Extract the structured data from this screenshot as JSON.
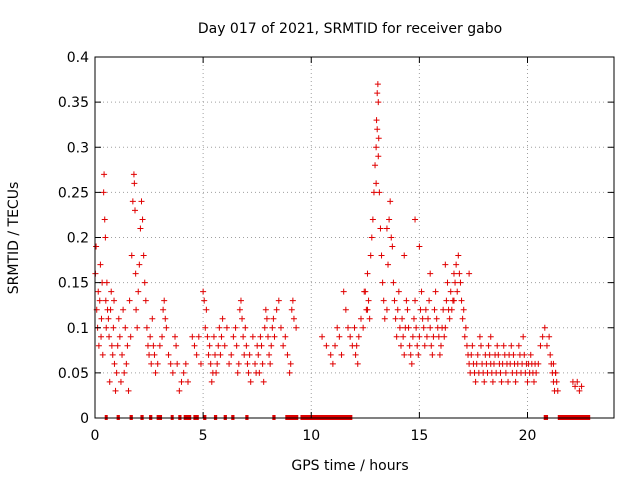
{
  "chart_data": {
    "type": "scatter",
    "title": "Day 017 of 2021, SRMTID for receiver gabo",
    "xlabel": "GPS time / hours",
    "ylabel": "SRMTID / TECUs",
    "xlim": [
      0,
      24
    ],
    "ylim": [
      0,
      0.4
    ],
    "xticks": [
      0,
      5,
      10,
      15,
      20
    ],
    "xtick_labels": [
      "0",
      "5",
      "10",
      "15",
      "20"
    ],
    "yticks": [
      0,
      0.05,
      0.1,
      0.15,
      0.2,
      0.25,
      0.3,
      0.35,
      0.4
    ],
    "ytick_labels": [
      "0",
      "0.05",
      "0.1",
      "0.15",
      "0.2",
      "0.25",
      "0.3",
      "0.35",
      "0.4"
    ],
    "grid": true,
    "marker": "+",
    "color": "#e00000",
    "zero_segments": [
      [
        0.45,
        0.55
      ],
      [
        1.0,
        1.15
      ],
      [
        1.6,
        1.75
      ],
      [
        2.1,
        2.25
      ],
      [
        2.5,
        2.65
      ],
      [
        2.85,
        3.1
      ],
      [
        3.5,
        3.6
      ],
      [
        3.85,
        4.0
      ],
      [
        4.1,
        4.45
      ],
      [
        4.55,
        4.8
      ],
      [
        5.0,
        5.15
      ],
      [
        5.5,
        5.65
      ],
      [
        5.95,
        6.1
      ],
      [
        6.3,
        6.45
      ],
      [
        6.95,
        7.1
      ],
      [
        8.2,
        8.35
      ],
      [
        8.8,
        9.4
      ],
      [
        9.5,
        11.9
      ],
      [
        20.75,
        20.95
      ],
      [
        21.4,
        22.9
      ]
    ],
    "series": [
      {
        "name": "SRMTID",
        "x": [
          0.02,
          0.05,
          0.08,
          0.12,
          0.15,
          0.18,
          0.22,
          0.25,
          0.28,
          0.3,
          0.33,
          0.36,
          0.4,
          0.42,
          0.45,
          0.48,
          0.5,
          0.52,
          0.55,
          0.58,
          0.62,
          0.65,
          0.68,
          0.72,
          0.75,
          0.78,
          0.82,
          0.85,
          0.88,
          0.9,
          0.95,
          1.0,
          1.05,
          1.1,
          1.15,
          1.2,
          1.25,
          1.3,
          1.35,
          1.4,
          1.45,
          1.5,
          1.55,
          1.6,
          1.65,
          1.7,
          1.75,
          1.8,
          1.82,
          1.85,
          1.88,
          1.9,
          1.95,
          2.0,
          2.05,
          2.1,
          2.15,
          2.2,
          2.25,
          2.3,
          2.35,
          2.4,
          2.45,
          2.5,
          2.55,
          2.6,
          2.65,
          2.7,
          2.75,
          2.8,
          2.9,
          3.0,
          3.1,
          3.15,
          3.2,
          3.25,
          3.3,
          3.4,
          3.5,
          3.6,
          3.7,
          3.75,
          3.8,
          3.9,
          4.0,
          4.1,
          4.2,
          4.3,
          4.5,
          4.6,
          4.7,
          4.8,
          4.9,
          5.0,
          5.05,
          5.1,
          5.15,
          5.2,
          5.25,
          5.3,
          5.35,
          5.4,
          5.45,
          5.5,
          5.55,
          5.6,
          5.65,
          5.7,
          5.75,
          5.8,
          5.85,
          5.9,
          6.0,
          6.1,
          6.2,
          6.3,
          6.4,
          6.5,
          6.55,
          6.6,
          6.65,
          6.7,
          6.75,
          6.8,
          6.85,
          6.9,
          6.95,
          7.0,
          7.05,
          7.1,
          7.15,
          7.2,
          7.3,
          7.4,
          7.45,
          7.5,
          7.55,
          7.6,
          7.65,
          7.7,
          7.75,
          7.8,
          7.85,
          7.9,
          7.95,
          8.0,
          8.05,
          8.1,
          8.15,
          8.2,
          8.25,
          8.3,
          8.4,
          8.5,
          8.6,
          8.7,
          8.8,
          8.9,
          9.0,
          9.05,
          9.1,
          9.15,
          9.2,
          9.3,
          10.5,
          10.7,
          10.9,
          11.0,
          11.1,
          11.2,
          11.3,
          11.4,
          11.5,
          11.6,
          11.7,
          11.8,
          11.9,
          12.0,
          12.05,
          12.1,
          12.15,
          12.2,
          12.3,
          12.4,
          12.5,
          12.55,
          12.6,
          12.65,
          12.7,
          12.75,
          12.8,
          12.85,
          12.9,
          12.95,
          13.0,
          13.02,
          13.05,
          13.08,
          13.1,
          13.12,
          13.15,
          13.2,
          13.25,
          13.3,
          13.35,
          13.4,
          13.5,
          13.55,
          13.6,
          13.65,
          13.7,
          13.75,
          13.8,
          13.85,
          13.9,
          13.95,
          14.0,
          14.05,
          14.1,
          14.15,
          14.2,
          14.25,
          14.3,
          14.35,
          14.4,
          14.45,
          14.5,
          14.55,
          14.6,
          14.65,
          14.7,
          14.75,
          14.8,
          14.85,
          14.9,
          14.95,
          15.0,
          15.05,
          15.1,
          15.15,
          15.2,
          15.25,
          15.3,
          15.35,
          15.4,
          15.45,
          15.5,
          15.55,
          15.6,
          15.65,
          15.7,
          15.75,
          15.8,
          15.85,
          15.9,
          15.95,
          16.0,
          16.05,
          16.1,
          16.15,
          16.2,
          16.25,
          16.3,
          16.35,
          16.4,
          16.45,
          16.5,
          16.55,
          16.6,
          16.65,
          16.7,
          16.75,
          16.8,
          16.85,
          16.9,
          16.95,
          17.0,
          17.05,
          17.1,
          17.15,
          17.2,
          17.25,
          17.3,
          17.35,
          17.4,
          17.45,
          17.5,
          17.55,
          17.6,
          17.65,
          17.7,
          17.75,
          17.8,
          17.85,
          17.9,
          17.95,
          18.0,
          18.05,
          18.1,
          18.15,
          18.2,
          18.25,
          18.3,
          18.35,
          18.4,
          18.45,
          18.5,
          18.55,
          18.6,
          18.65,
          18.7,
          18.75,
          18.8,
          18.85,
          18.9,
          18.95,
          19.0,
          19.05,
          19.1,
          19.15,
          19.2,
          19.25,
          19.3,
          19.35,
          19.4,
          19.45,
          19.5,
          19.55,
          19.6,
          19.65,
          19.7,
          19.75,
          19.8,
          19.85,
          19.9,
          19.95,
          20.0,
          20.05,
          20.1,
          20.15,
          20.2,
          20.25,
          20.3,
          20.35,
          20.4,
          20.5,
          20.6,
          20.7,
          20.8,
          20.9,
          21.0,
          21.05,
          21.1,
          21.15,
          21.2,
          21.25,
          21.3,
          21.35,
          21.4,
          22.1,
          22.2,
          22.3,
          22.4,
          22.5,
          21.2,
          21.3,
          13.05,
          13.1,
          13.0,
          14.8,
          15.0,
          16.2,
          17.3,
          12.45,
          12.6,
          13.5,
          14.3,
          15.5,
          16.6,
          18.3
        ],
        "y": [
          0.16,
          0.19,
          0.12,
          0.1,
          0.14,
          0.08,
          0.13,
          0.17,
          0.09,
          0.11,
          0.15,
          0.07,
          0.25,
          0.27,
          0.22,
          0.2,
          0.13,
          0.1,
          0.15,
          0.12,
          0.11,
          0.09,
          0.04,
          0.12,
          0.14,
          0.08,
          0.07,
          0.1,
          0.13,
          0.06,
          0.03,
          0.05,
          0.08,
          0.11,
          0.09,
          0.04,
          0.07,
          0.12,
          0.05,
          0.1,
          0.06,
          0.08,
          0.03,
          0.13,
          0.09,
          0.18,
          0.24,
          0.27,
          0.26,
          0.23,
          0.16,
          0.12,
          0.1,
          0.14,
          0.17,
          0.21,
          0.24,
          0.22,
          0.18,
          0.15,
          0.13,
          0.1,
          0.08,
          0.07,
          0.09,
          0.06,
          0.11,
          0.08,
          0.07,
          0.05,
          0.06,
          0.08,
          0.09,
          0.12,
          0.13,
          0.11,
          0.1,
          0.07,
          0.06,
          0.05,
          0.09,
          0.08,
          0.06,
          0.03,
          0.04,
          0.05,
          0.06,
          0.04,
          0.09,
          0.08,
          0.07,
          0.09,
          0.06,
          0.14,
          0.13,
          0.1,
          0.12,
          0.09,
          0.07,
          0.08,
          0.06,
          0.04,
          0.05,
          0.09,
          0.07,
          0.05,
          0.06,
          0.08,
          0.1,
          0.07,
          0.09,
          0.11,
          0.08,
          0.1,
          0.06,
          0.07,
          0.09,
          0.1,
          0.08,
          0.05,
          0.06,
          0.12,
          0.13,
          0.11,
          0.09,
          0.07,
          0.1,
          0.08,
          0.06,
          0.05,
          0.07,
          0.04,
          0.09,
          0.06,
          0.05,
          0.08,
          0.07,
          0.05,
          0.09,
          0.08,
          0.06,
          0.04,
          0.1,
          0.12,
          0.11,
          0.09,
          0.07,
          0.06,
          0.08,
          0.1,
          0.11,
          0.09,
          0.12,
          0.13,
          0.1,
          0.08,
          0.09,
          0.07,
          0.05,
          0.06,
          0.12,
          0.13,
          0.11,
          0.1,
          0.09,
          0.08,
          0.07,
          0.06,
          0.08,
          0.1,
          0.09,
          0.07,
          0.14,
          0.12,
          0.1,
          0.09,
          0.08,
          0.1,
          0.07,
          0.08,
          0.06,
          0.09,
          0.11,
          0.1,
          0.14,
          0.12,
          0.16,
          0.13,
          0.11,
          0.18,
          0.2,
          0.22,
          0.25,
          0.28,
          0.3,
          0.33,
          0.36,
          0.37,
          0.35,
          0.31,
          0.25,
          0.21,
          0.18,
          0.15,
          0.13,
          0.11,
          0.12,
          0.17,
          0.22,
          0.24,
          0.2,
          0.19,
          0.15,
          0.13,
          0.11,
          0.09,
          0.12,
          0.14,
          0.1,
          0.08,
          0.11,
          0.09,
          0.07,
          0.1,
          0.13,
          0.12,
          0.1,
          0.08,
          0.07,
          0.06,
          0.09,
          0.11,
          0.13,
          0.1,
          0.08,
          0.07,
          0.09,
          0.12,
          0.14,
          0.11,
          0.1,
          0.08,
          0.12,
          0.09,
          0.11,
          0.13,
          0.1,
          0.08,
          0.07,
          0.09,
          0.12,
          0.14,
          0.11,
          0.1,
          0.09,
          0.07,
          0.08,
          0.1,
          0.12,
          0.09,
          0.1,
          0.13,
          0.15,
          0.12,
          0.11,
          0.14,
          0.12,
          0.13,
          0.16,
          0.15,
          0.17,
          0.14,
          0.18,
          0.16,
          0.15,
          0.13,
          0.11,
          0.12,
          0.09,
          0.1,
          0.08,
          0.07,
          0.06,
          0.05,
          0.07,
          0.08,
          0.06,
          0.05,
          0.04,
          0.06,
          0.07,
          0.05,
          0.09,
          0.08,
          0.06,
          0.05,
          0.04,
          0.07,
          0.06,
          0.05,
          0.08,
          0.07,
          0.06,
          0.05,
          0.04,
          0.06,
          0.07,
          0.05,
          0.08,
          0.07,
          0.06,
          0.05,
          0.04,
          0.06,
          0.08,
          0.07,
          0.05,
          0.06,
          0.04,
          0.07,
          0.06,
          0.08,
          0.05,
          0.07,
          0.06,
          0.04,
          0.05,
          0.06,
          0.08,
          0.07,
          0.05,
          0.06,
          0.09,
          0.07,
          0.05,
          0.06,
          0.04,
          0.06,
          0.05,
          0.07,
          0.06,
          0.05,
          0.04,
          0.06,
          0.05,
          0.06,
          0.08,
          0.09,
          0.1,
          0.08,
          0.09,
          0.07,
          0.06,
          0.05,
          0.04,
          0.03,
          0.05,
          0.04,
          0.03,
          0.04,
          0.035,
          0.04,
          0.03,
          0.035,
          0.06,
          0.05,
          0.32,
          0.29,
          0.26,
          0.22,
          0.19,
          0.17,
          0.16,
          0.14,
          0.12,
          0.21,
          0.18,
          0.16,
          0.13,
          0.09
        ]
      }
    ]
  }
}
